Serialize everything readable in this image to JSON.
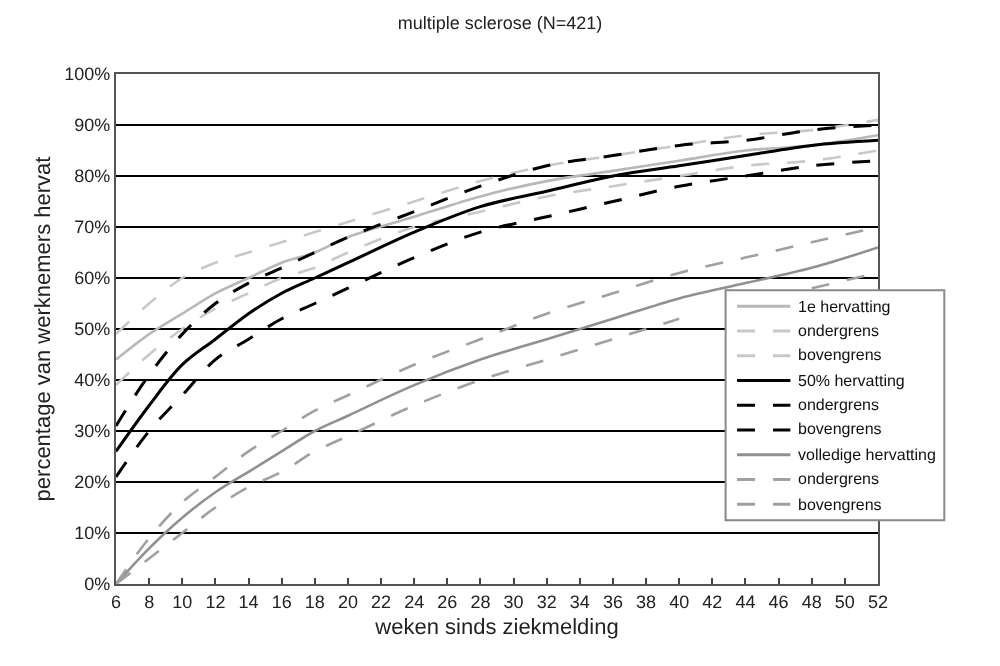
{
  "chart_data": {
    "type": "line",
    "title": "multiple sclerose (N=421)",
    "xlabel": "weken sinds ziekmelding",
    "ylabel": "percentage van werknemers hervat",
    "x": [
      6,
      8,
      10,
      12,
      14,
      16,
      18,
      20,
      24,
      28,
      32,
      36,
      40,
      44,
      48,
      52
    ],
    "series": [
      {
        "name": "1e hervatting",
        "color": "#b8b8b8",
        "line_style": "solid",
        "values": [
          44,
          49,
          53,
          57,
          60,
          63,
          65,
          68,
          72,
          76,
          79,
          81,
          83,
          85,
          86,
          88
        ]
      },
      {
        "name": "ondergrens",
        "color": "#c8c8c8",
        "line_style": "dashed",
        "values": [
          39,
          45,
          50,
          54,
          57,
          60,
          62,
          65,
          70,
          73,
          76,
          78,
          80,
          82,
          83,
          85
        ]
      },
      {
        "name": "bovengrens",
        "color": "#c8c8c8",
        "line_style": "dashed",
        "values": [
          49,
          55,
          60,
          63,
          65,
          67,
          69,
          71,
          75,
          79,
          82,
          84,
          86,
          88,
          89,
          91
        ]
      },
      {
        "name": "50% hervatting",
        "color": "#000000",
        "line_style": "solid",
        "values": [
          26,
          35,
          43,
          48,
          53,
          57,
          60,
          63,
          69,
          74,
          77,
          80,
          82,
          84,
          86,
          87
        ]
      },
      {
        "name": "ondergrens",
        "color": "#000000",
        "line_style": "dashed",
        "values": [
          21,
          30,
          37,
          44,
          48,
          52,
          55,
          58,
          64,
          69,
          72,
          75,
          78,
          80,
          82,
          83
        ]
      },
      {
        "name": "bovengrens",
        "color": "#000000",
        "line_style": "dashed",
        "values": [
          31,
          41,
          49,
          55,
          59,
          62,
          65,
          68,
          73,
          78,
          82,
          84,
          86,
          87,
          89,
          90
        ]
      },
      {
        "name": "volledige hervatting",
        "color": "#909090",
        "line_style": "solid",
        "values": [
          0,
          7,
          13,
          18,
          22,
          26,
          30,
          33,
          39,
          44,
          48,
          52,
          56,
          59,
          62,
          66
        ]
      },
      {
        "name": "ondergrens",
        "color": "#a0a0a0",
        "line_style": "dashed",
        "values": [
          0,
          5,
          10,
          15,
          19,
          22,
          26,
          29,
          35,
          40,
          44,
          48,
          52,
          null,
          58,
          61
        ]
      },
      {
        "name": "bovengrens",
        "color": "#a0a0a0",
        "line_style": "dashed",
        "values": [
          0,
          9,
          16,
          21,
          26,
          30,
          34,
          37,
          43,
          48,
          53,
          57,
          61,
          64,
          67,
          70
        ]
      }
    ],
    "xlim": [
      6,
      52
    ],
    "xticks": [
      6,
      8,
      10,
      12,
      14,
      16,
      18,
      20,
      22,
      24,
      26,
      28,
      30,
      32,
      34,
      36,
      38,
      40,
      42,
      44,
      46,
      48,
      50,
      52
    ],
    "ylim": [
      0,
      100
    ],
    "yticks": [
      {
        "value": 0,
        "label": "0%"
      },
      {
        "value": 10,
        "label": "10%"
      },
      {
        "value": 20,
        "label": "20%"
      },
      {
        "value": 30,
        "label": "30%"
      },
      {
        "value": 40,
        "label": "40%"
      },
      {
        "value": 50,
        "label": "50%"
      },
      {
        "value": 60,
        "label": "60%"
      },
      {
        "value": 70,
        "label": "70%"
      },
      {
        "value": 80,
        "label": "80%"
      },
      {
        "value": 90,
        "label": "90%"
      },
      {
        "value": 100,
        "label": "100%"
      }
    ],
    "grid": "y",
    "legend": "bottom right",
    "marker": "none"
  }
}
